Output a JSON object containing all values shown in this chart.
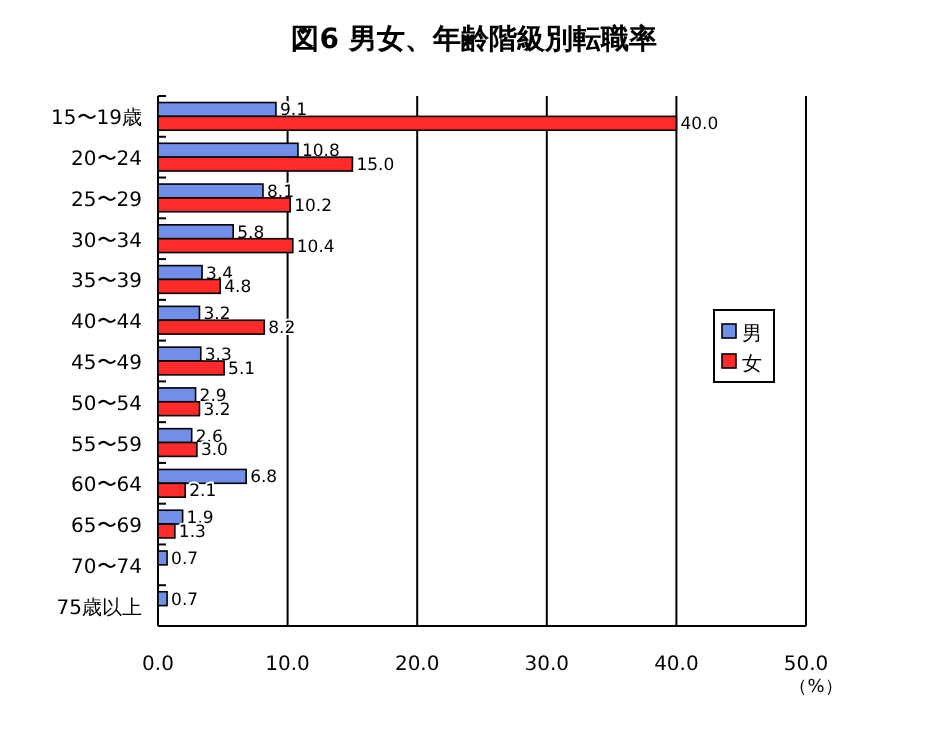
{
  "chart_data": {
    "type": "bar",
    "orientation": "horizontal",
    "title": "図6 男女、年齢階級別転職率",
    "xlabel": "（%）",
    "categories": [
      "15〜19歳",
      "20〜24",
      "25〜29",
      "30〜34",
      "35〜39",
      "40〜44",
      "45〜49",
      "50〜54",
      "55〜59",
      "60〜64",
      "65〜69",
      "70〜74",
      "75歳以上"
    ],
    "series": [
      {
        "name": "男",
        "color": "#6f8fe8",
        "values": [
          9.1,
          10.8,
          8.1,
          5.8,
          3.4,
          3.2,
          3.3,
          2.9,
          2.6,
          6.8,
          1.9,
          0.7,
          0.7
        ],
        "value_labels": [
          "9.1",
          "10.8",
          "8.1",
          "5.8",
          "3.4",
          "3.2",
          "3.3",
          "2.9",
          "2.6",
          "6.8",
          "1.9",
          "0.7",
          "0.7"
        ]
      },
      {
        "name": "女",
        "color": "#ff2a2a",
        "values": [
          40.0,
          15.0,
          10.2,
          10.4,
          4.8,
          8.2,
          5.1,
          3.2,
          3.0,
          2.1,
          1.3,
          null,
          null
        ],
        "value_labels": [
          "40.0",
          "15.0",
          "10.2",
          "10.4",
          "4.8",
          "8.2",
          "5.1",
          "3.2",
          "3.0",
          "2.1",
          "1.3",
          null,
          null
        ]
      }
    ],
    "xlim": [
      0,
      50
    ],
    "xticks": [
      {
        "value": 0,
        "label": "0.0"
      },
      {
        "value": 10,
        "label": "10.0"
      },
      {
        "value": 20,
        "label": "20.0"
      },
      {
        "value": 30,
        "label": "30.0"
      },
      {
        "value": 40,
        "label": "40.0"
      },
      {
        "value": 50,
        "label": "50.0"
      }
    ],
    "grid": "x",
    "legend": "right"
  }
}
